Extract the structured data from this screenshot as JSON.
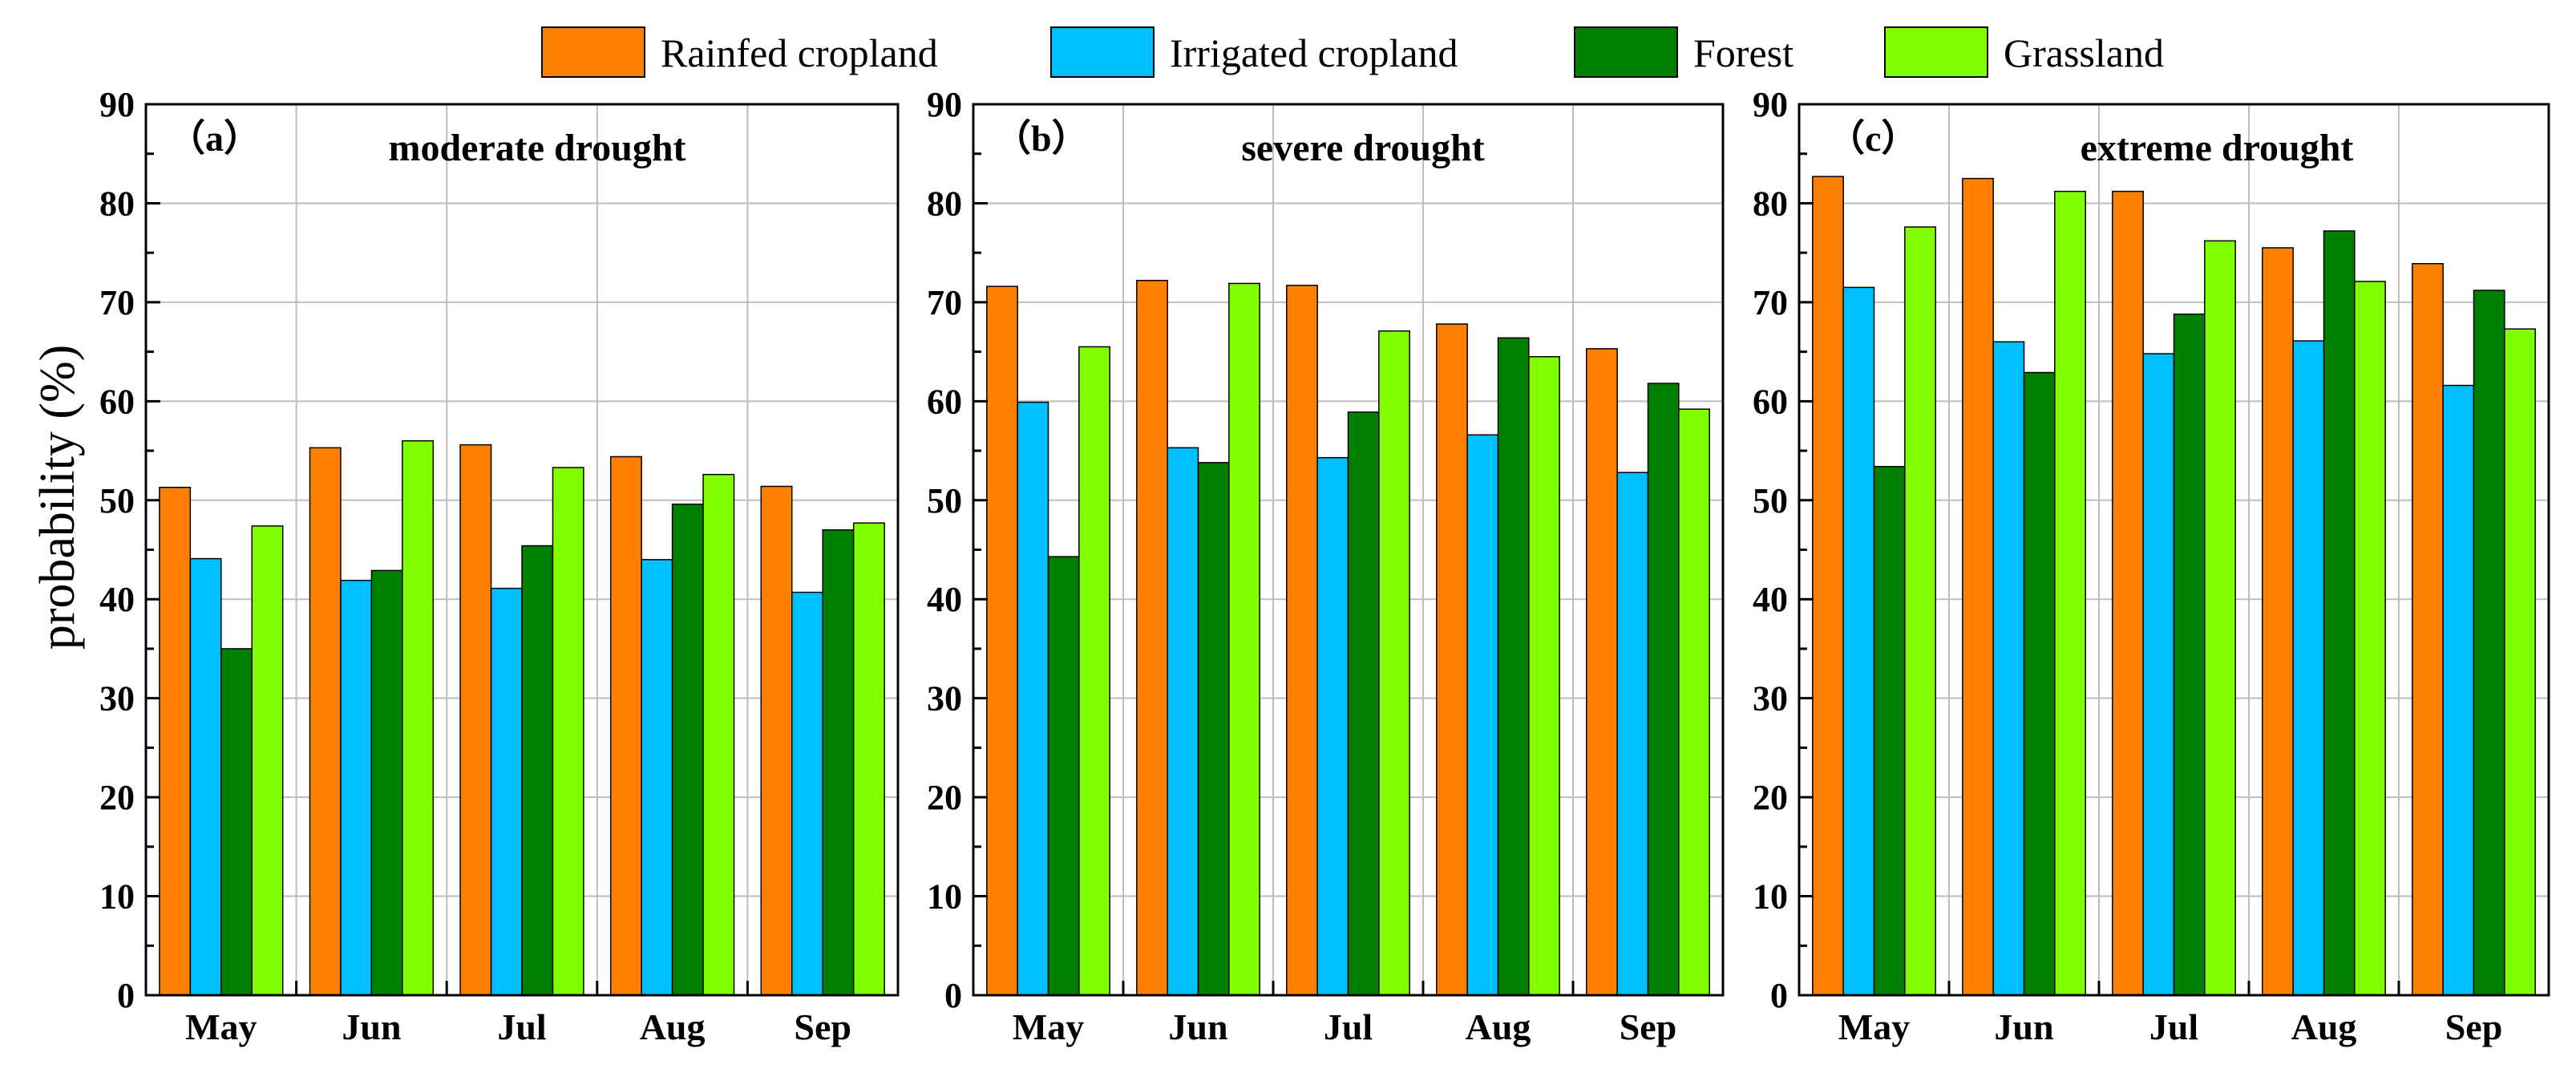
{
  "chart_data": {
    "type": "bar",
    "ylabel": "probability (%)",
    "ylim": [
      0,
      90
    ],
    "yticks": [
      0,
      10,
      20,
      30,
      40,
      50,
      60,
      70,
      80,
      90
    ],
    "grid": true,
    "legend_position": "top-center",
    "categories": [
      "May",
      "Jun",
      "Jul",
      "Aug",
      "Sep"
    ],
    "series_meta": [
      {
        "name": "Rainfed cropland",
        "color": "#ff8000"
      },
      {
        "name": "Irrigated cropland",
        "color": "#00bfff"
      },
      {
        "name": "Forest",
        "color": "#008000"
      },
      {
        "name": "Grassland",
        "color": "#80ff00"
      }
    ],
    "panels": [
      {
        "tag": "（a）",
        "title": "moderate drought",
        "series": [
          {
            "name": "Rainfed cropland",
            "values": [
              51.3,
              55.3,
              55.6,
              54.4,
              51.4
            ]
          },
          {
            "name": "Irrigated cropland",
            "values": [
              44.1,
              41.9,
              41.1,
              44.0,
              40.7
            ]
          },
          {
            "name": "Forest",
            "values": [
              35.0,
              42.9,
              45.4,
              49.6,
              47.0
            ]
          },
          {
            "name": "Grassland",
            "values": [
              47.4,
              56.0,
              53.3,
              52.6,
              47.7
            ]
          }
        ]
      },
      {
        "tag": "（b）",
        "title": "severe drought",
        "series": [
          {
            "name": "Rainfed cropland",
            "values": [
              71.6,
              72.2,
              71.7,
              67.8,
              65.3
            ]
          },
          {
            "name": "Irrigated cropland",
            "values": [
              59.9,
              55.3,
              54.3,
              56.6,
              52.8
            ]
          },
          {
            "name": "Forest",
            "values": [
              44.3,
              53.8,
              58.9,
              66.4,
              61.8
            ]
          },
          {
            "name": "Grassland",
            "values": [
              65.5,
              71.9,
              67.1,
              64.5,
              59.2
            ]
          }
        ]
      },
      {
        "tag": "（c）",
        "title": "extreme drought",
        "series": [
          {
            "name": "Rainfed cropland",
            "values": [
              82.7,
              82.5,
              81.2,
              75.5,
              73.9
            ]
          },
          {
            "name": "Irrigated cropland",
            "values": [
              71.5,
              66.0,
              64.8,
              66.1,
              61.6
            ]
          },
          {
            "name": "Forest",
            "values": [
              53.4,
              62.9,
              68.8,
              77.2,
              71.2
            ]
          },
          {
            "name": "Grassland",
            "values": [
              77.6,
              81.2,
              76.2,
              72.1,
              67.3
            ]
          }
        ]
      }
    ]
  }
}
